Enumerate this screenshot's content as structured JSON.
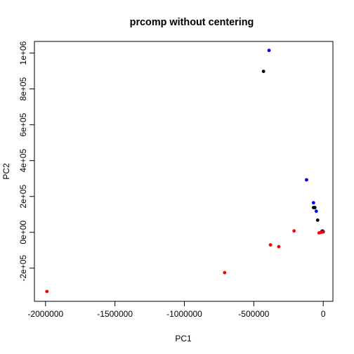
{
  "chart_data": {
    "type": "scatter",
    "title": "prcomp without centering",
    "xlabel": "PC1",
    "ylabel": "PC2",
    "xlim": [
      -2080000,
      70000
    ],
    "ylim": [
      -385000,
      1065000
    ],
    "xticks": [
      {
        "value": -2000000,
        "label": "-2000000"
      },
      {
        "value": -1500000,
        "label": "-1500000"
      },
      {
        "value": -1000000,
        "label": "-1000000"
      },
      {
        "value": -500000,
        "label": "-500000"
      },
      {
        "value": 0,
        "label": "0"
      }
    ],
    "yticks": [
      {
        "value": -200000,
        "label": "-2e+05"
      },
      {
        "value": 0,
        "label": "0e+00"
      },
      {
        "value": 200000,
        "label": "2e+05"
      },
      {
        "value": 400000,
        "label": "4e+05"
      },
      {
        "value": 600000,
        "label": "6e+05"
      },
      {
        "value": 800000,
        "label": "8e+05"
      },
      {
        "value": 1000000,
        "label": "1e+06"
      }
    ],
    "grid": false,
    "legend": "none",
    "series": [
      {
        "color": "#0000ff",
        "points": [
          {
            "x": -390000,
            "y": 1015000
          },
          {
            "x": -120000,
            "y": 293000
          },
          {
            "x": -70000,
            "y": 165000
          },
          {
            "x": -50000,
            "y": 118000
          },
          {
            "x": -5000,
            "y": 8000
          }
        ]
      },
      {
        "color": "#000000",
        "points": [
          {
            "x": -430000,
            "y": 898000
          },
          {
            "x": -70000,
            "y": 138000
          },
          {
            "x": -60000,
            "y": 138000
          },
          {
            "x": -40000,
            "y": 68000
          },
          {
            "x": -10000,
            "y": 5000
          },
          {
            "x": 0,
            "y": 3000
          }
        ]
      },
      {
        "color": "#ff0000",
        "points": [
          {
            "x": -1990000,
            "y": -330000
          },
          {
            "x": -710000,
            "y": -225000
          },
          {
            "x": -380000,
            "y": -70000
          },
          {
            "x": -320000,
            "y": -80000
          },
          {
            "x": -210000,
            "y": 8000
          },
          {
            "x": -30000,
            "y": -3000
          },
          {
            "x": -15000,
            "y": 0
          },
          {
            "x": -5000,
            "y": 2000
          }
        ]
      }
    ]
  }
}
